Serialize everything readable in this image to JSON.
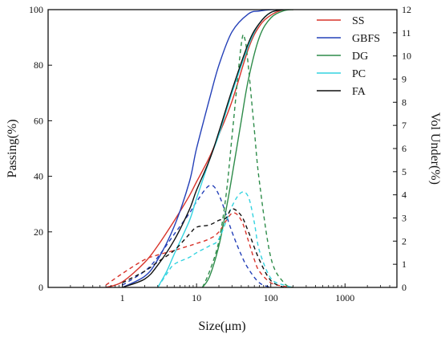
{
  "chart_data": {
    "type": "line",
    "title": "",
    "xlabel": "Size(μm)",
    "ylabel": "Passing(%)",
    "y2label": "Vol Under(%)",
    "x_scale": "log",
    "xlim": [
      0.1,
      5000
    ],
    "ylim": [
      0,
      100
    ],
    "y2lim": [
      0,
      12
    ],
    "x_ticks": [
      1,
      10,
      100,
      1000
    ],
    "x_tick_labels": [
      "1",
      "10",
      "100",
      "1000"
    ],
    "y_ticks": [
      0,
      20,
      40,
      60,
      80,
      100
    ],
    "y_tick_labels": [
      "0",
      "20",
      "40",
      "60",
      "80",
      "100"
    ],
    "y2_ticks": [
      0,
      1,
      2,
      3,
      4,
      5,
      6,
      7,
      8,
      9,
      10,
      11,
      12
    ],
    "y2_tick_labels": [
      "0",
      "1",
      "2",
      "3",
      "4",
      "5",
      "6",
      "7",
      "8",
      "9",
      "10",
      "11",
      "12"
    ],
    "grid": false,
    "legend_position": "top-right",
    "legend": [
      "SS",
      "GBFS",
      "DG",
      "PC",
      "FA"
    ],
    "colors": {
      "SS": "#d8332a",
      "GBFS": "#2440b8",
      "DG": "#2e8c4a",
      "PC": "#33d3e0",
      "FA": "#111111"
    },
    "series": [
      {
        "name": "SS",
        "cumulative": {
          "x": [
            0.6,
            1,
            2,
            3,
            5,
            8,
            10,
            15,
            20,
            30,
            50,
            70,
            100,
            150,
            200
          ],
          "y": [
            0,
            2,
            9,
            15,
            24,
            33,
            38,
            47,
            55,
            67,
            86,
            94,
            98,
            100,
            100
          ]
        },
        "distribution": {
          "x": [
            0.6,
            1,
            2,
            3,
            5,
            8,
            10,
            15,
            20,
            30,
            40,
            50,
            60,
            70,
            100,
            150,
            200
          ],
          "y": [
            0.1,
            0.6,
            1.2,
            1.4,
            1.6,
            1.8,
            1.9,
            2.1,
            2.4,
            3.2,
            2.9,
            2.0,
            1.2,
            0.7,
            0.2,
            0.05,
            0
          ]
        }
      },
      {
        "name": "GBFS",
        "cumulative": {
          "x": [
            1,
            2,
            3,
            5,
            8,
            10,
            15,
            20,
            30,
            50,
            70,
            100,
            150
          ],
          "y": [
            0,
            4,
            10,
            22,
            38,
            50,
            68,
            80,
            92,
            98.5,
            99.5,
            100,
            100
          ]
        },
        "distribution": {
          "x": [
            1,
            2,
            3,
            5,
            8,
            10,
            15,
            20,
            30,
            40,
            50,
            70,
            100
          ],
          "y": [
            0.1,
            0.7,
            1.3,
            2.3,
            3.2,
            3.7,
            4.4,
            4.0,
            2.4,
            1.4,
            0.8,
            0.2,
            0
          ]
        }
      },
      {
        "name": "DG",
        "cumulative": {
          "x": [
            12,
            15,
            20,
            25,
            30,
            40,
            50,
            70,
            100,
            150,
            200
          ],
          "y": [
            0,
            4,
            15,
            28,
            40,
            60,
            75,
            90,
            97,
            99.6,
            100
          ]
        },
        "distribution": {
          "x": [
            12,
            15,
            20,
            25,
            30,
            40,
            45,
            50,
            60,
            70,
            100,
            150,
            200
          ],
          "y": [
            0,
            0.7,
            2.0,
            4.0,
            6.5,
            10.5,
            10.7,
            9.5,
            6.8,
            4.6,
            1.3,
            0.2,
            0
          ]
        }
      },
      {
        "name": "PC",
        "cumulative": {
          "x": [
            3,
            4,
            5,
            8,
            10,
            15,
            20,
            30,
            50,
            70,
            100,
            150
          ],
          "y": [
            0,
            6,
            12,
            24,
            32,
            46,
            55,
            70,
            87,
            95,
            99,
            100
          ]
        },
        "distribution": {
          "x": [
            3,
            4,
            5,
            8,
            10,
            15,
            20,
            30,
            40,
            50,
            60,
            70,
            100,
            150,
            200
          ],
          "y": [
            0,
            0.6,
            1.0,
            1.3,
            1.5,
            1.8,
            2.1,
            3.5,
            4.1,
            3.9,
            2.8,
            1.6,
            0.4,
            0.1,
            0
          ]
        }
      },
      {
        "name": "FA",
        "cumulative": {
          "x": [
            1,
            2,
            3,
            5,
            8,
            10,
            15,
            20,
            30,
            50,
            70,
            100,
            150
          ],
          "y": [
            0,
            3,
            8,
            17,
            28,
            35,
            46,
            56,
            71,
            88,
            95,
            99,
            100
          ]
        },
        "distribution": {
          "x": [
            1,
            2,
            3,
            5,
            8,
            10,
            15,
            20,
            25,
            30,
            40,
            50,
            70,
            100,
            150
          ],
          "y": [
            0.2,
            0.7,
            1.1,
            1.6,
            2.3,
            2.6,
            2.7,
            2.9,
            3.0,
            3.4,
            3.1,
            2.4,
            1.2,
            0.3,
            0
          ]
        }
      }
    ]
  }
}
